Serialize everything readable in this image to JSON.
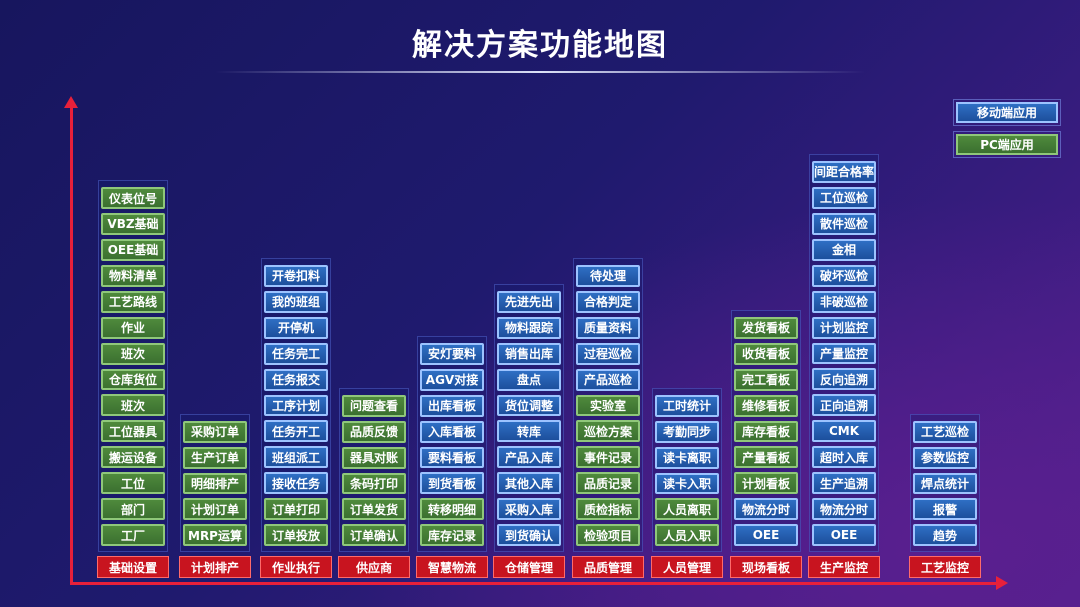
{
  "title": "解决方案功能地图",
  "legend": {
    "mobile": "移动端应用",
    "pc": "PC端应用"
  },
  "colors": {
    "mobile": "#1d4f9c",
    "pc": "#3b7030",
    "category": "#c8141f",
    "axis": "#e8203a"
  },
  "columns": [
    {
      "category": "基础设置",
      "items": [
        {
          "label": "仪表位号",
          "type": "pc"
        },
        {
          "label": "VBZ基础",
          "type": "pc"
        },
        {
          "label": "OEE基础",
          "type": "pc"
        },
        {
          "label": "物料清单",
          "type": "pc"
        },
        {
          "label": "工艺路线",
          "type": "pc"
        },
        {
          "label": "作业",
          "type": "pc"
        },
        {
          "label": "班次",
          "type": "pc"
        },
        {
          "label": "仓库货位",
          "type": "pc"
        },
        {
          "label": "班次",
          "type": "pc"
        },
        {
          "label": "工位器具",
          "type": "pc"
        },
        {
          "label": "搬运设备",
          "type": "pc"
        },
        {
          "label": "工位",
          "type": "pc"
        },
        {
          "label": "部门",
          "type": "pc"
        },
        {
          "label": "工厂",
          "type": "pc"
        }
      ]
    },
    {
      "category": "计划排产",
      "items": [
        {
          "label": "采购订单",
          "type": "pc"
        },
        {
          "label": "生产订单",
          "type": "pc"
        },
        {
          "label": "明细排产",
          "type": "pc"
        },
        {
          "label": "计划订单",
          "type": "pc"
        },
        {
          "label": "MRP运算",
          "type": "pc"
        }
      ]
    },
    {
      "category": "作业执行",
      "items": [
        {
          "label": "开卷扣料",
          "type": "mobile"
        },
        {
          "label": "我的班组",
          "type": "mobile"
        },
        {
          "label": "开停机",
          "type": "mobile"
        },
        {
          "label": "任务完工",
          "type": "mobile"
        },
        {
          "label": "任务报交",
          "type": "mobile"
        },
        {
          "label": "工序计划",
          "type": "mobile"
        },
        {
          "label": "任务开工",
          "type": "mobile"
        },
        {
          "label": "班组派工",
          "type": "mobile"
        },
        {
          "label": "接收任务",
          "type": "mobile"
        },
        {
          "label": "订单打印",
          "type": "pc"
        },
        {
          "label": "订单投放",
          "type": "pc"
        }
      ]
    },
    {
      "category": "供应商",
      "items": [
        {
          "label": "问题查看",
          "type": "pc"
        },
        {
          "label": "品质反馈",
          "type": "pc"
        },
        {
          "label": "器具对账",
          "type": "pc"
        },
        {
          "label": "条码打印",
          "type": "pc"
        },
        {
          "label": "订单发货",
          "type": "pc"
        },
        {
          "label": "订单确认",
          "type": "pc"
        }
      ]
    },
    {
      "category": "智慧物流",
      "items": [
        {
          "label": "安灯要料",
          "type": "mobile"
        },
        {
          "label": "AGV对接",
          "type": "mobile"
        },
        {
          "label": "出库看板",
          "type": "mobile"
        },
        {
          "label": "入库看板",
          "type": "mobile"
        },
        {
          "label": "要料看板",
          "type": "mobile"
        },
        {
          "label": "到货看板",
          "type": "mobile"
        },
        {
          "label": "转移明细",
          "type": "pc"
        },
        {
          "label": "库存记录",
          "type": "pc"
        }
      ]
    },
    {
      "category": "仓储管理",
      "items": [
        {
          "label": "先进先出",
          "type": "mobile"
        },
        {
          "label": "物料跟踪",
          "type": "mobile"
        },
        {
          "label": "销售出库",
          "type": "mobile"
        },
        {
          "label": "盘点",
          "type": "mobile"
        },
        {
          "label": "货位调整",
          "type": "mobile"
        },
        {
          "label": "转库",
          "type": "mobile"
        },
        {
          "label": "产品入库",
          "type": "mobile"
        },
        {
          "label": "其他入库",
          "type": "mobile"
        },
        {
          "label": "采购入库",
          "type": "mobile"
        },
        {
          "label": "到货确认",
          "type": "mobile"
        }
      ]
    },
    {
      "category": "品质管理",
      "items": [
        {
          "label": "待处理",
          "type": "mobile"
        },
        {
          "label": "合格判定",
          "type": "mobile"
        },
        {
          "label": "质量资料",
          "type": "mobile"
        },
        {
          "label": "过程巡检",
          "type": "mobile"
        },
        {
          "label": "产品巡检",
          "type": "mobile"
        },
        {
          "label": "实验室",
          "type": "pc"
        },
        {
          "label": "巡检方案",
          "type": "pc"
        },
        {
          "label": "事件记录",
          "type": "pc"
        },
        {
          "label": "品质记录",
          "type": "pc"
        },
        {
          "label": "质检指标",
          "type": "pc"
        },
        {
          "label": "检验项目",
          "type": "pc"
        }
      ]
    },
    {
      "category": "人员管理",
      "items": [
        {
          "label": "工时统计",
          "type": "mobile"
        },
        {
          "label": "考勤同步",
          "type": "mobile"
        },
        {
          "label": "读卡离职",
          "type": "mobile"
        },
        {
          "label": "读卡入职",
          "type": "mobile"
        },
        {
          "label": "人员离职",
          "type": "pc"
        },
        {
          "label": "人员入职",
          "type": "pc"
        }
      ]
    },
    {
      "category": "现场看板",
      "items": [
        {
          "label": "发货看板",
          "type": "pc"
        },
        {
          "label": "收货看板",
          "type": "pc"
        },
        {
          "label": "完工看板",
          "type": "pc"
        },
        {
          "label": "维修看板",
          "type": "pc"
        },
        {
          "label": "库存看板",
          "type": "pc"
        },
        {
          "label": "产量看板",
          "type": "pc"
        },
        {
          "label": "计划看板",
          "type": "pc"
        },
        {
          "label": "物流分时",
          "type": "mobile"
        },
        {
          "label": "OEE",
          "type": "mobile"
        }
      ]
    },
    {
      "category": "生产监控",
      "items": [
        {
          "label": "间距合格率",
          "type": "mobile"
        },
        {
          "label": "工位巡检",
          "type": "mobile"
        },
        {
          "label": "散件巡检",
          "type": "mobile"
        },
        {
          "label": "金相",
          "type": "mobile"
        },
        {
          "label": "破坏巡检",
          "type": "mobile"
        },
        {
          "label": "非破巡检",
          "type": "mobile"
        },
        {
          "label": "计划监控",
          "type": "mobile"
        },
        {
          "label": "产量监控",
          "type": "mobile"
        },
        {
          "label": "反向追溯",
          "type": "mobile"
        },
        {
          "label": "正向追溯",
          "type": "mobile"
        },
        {
          "label": "CMK",
          "type": "mobile"
        },
        {
          "label": "超时入库",
          "type": "mobile"
        },
        {
          "label": "生产追溯",
          "type": "mobile"
        },
        {
          "label": "物流分时",
          "type": "mobile"
        },
        {
          "label": "OEE",
          "type": "mobile"
        }
      ]
    },
    {
      "category": "工艺监控",
      "items": [
        {
          "label": "工艺巡检",
          "type": "mobile"
        },
        {
          "label": "参数监控",
          "type": "mobile"
        },
        {
          "label": "焊点统计",
          "type": "mobile"
        },
        {
          "label": "报警",
          "type": "mobile"
        },
        {
          "label": "趋势",
          "type": "mobile"
        }
      ]
    }
  ]
}
